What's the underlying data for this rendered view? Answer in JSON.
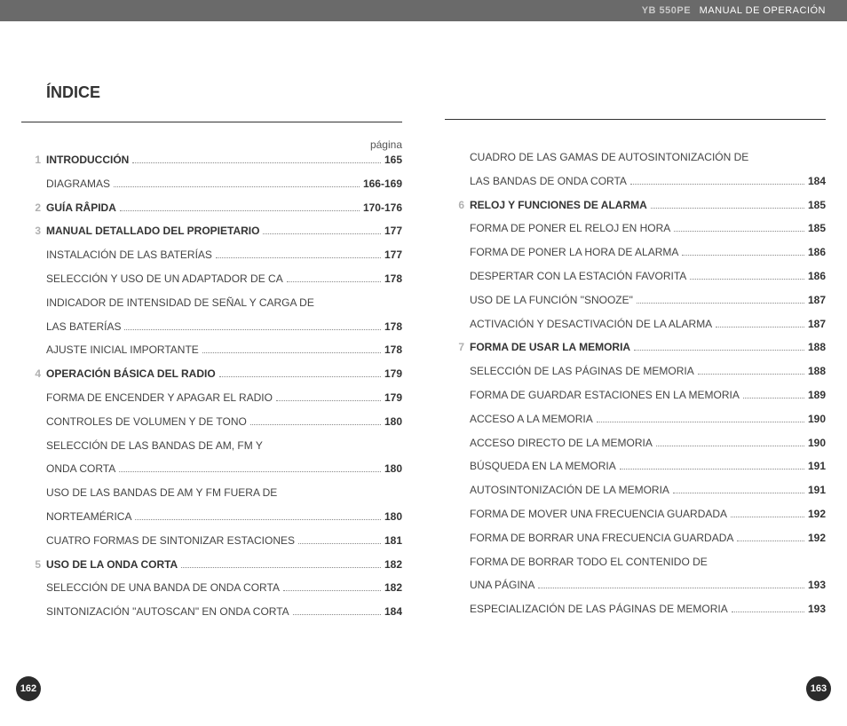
{
  "header": {
    "model": "YB 550PE",
    "doc_title": "MANUAL DE OPERACIÓN"
  },
  "title": "ÍNDICE",
  "pagina_label": "página",
  "page_left": "162",
  "page_right": "163",
  "left_entries": [
    {
      "num": "1",
      "label": "INTRODUCCIÓN",
      "bold": true,
      "page": "165"
    },
    {
      "num": "",
      "label": "DIAGRAMAS",
      "bold": false,
      "page": "166-169"
    },
    {
      "num": "2",
      "label": "GUÍA RÂPIDA",
      "bold": true,
      "page": "170-176"
    },
    {
      "num": "3",
      "label": "MANUAL DETALLADO DEL PROPIETARIO",
      "bold": true,
      "page": "177"
    },
    {
      "num": "",
      "label": "INSTALACIÓN DE LAS BATERÍAS",
      "bold": false,
      "page": "177"
    },
    {
      "num": "",
      "label": "SELECCIÓN Y USO DE UN ADAPTADOR DE CA",
      "bold": false,
      "page": "178"
    },
    {
      "num": "",
      "label": "INDICADOR DE INTENSIDAD DE SEÑAL Y CARGA DE",
      "bold": false,
      "page": "",
      "nolead": true
    },
    {
      "num": "",
      "label": "LAS BATERÍAS",
      "bold": false,
      "page": "178"
    },
    {
      "num": "",
      "label": "AJUSTE INICIAL IMPORTANTE",
      "bold": false,
      "page": "178"
    },
    {
      "num": "4",
      "label": "OPERACIÓN BÁSICA DEL RADIO",
      "bold": true,
      "page": "179"
    },
    {
      "num": "",
      "label": "FORMA DE ENCENDER Y APAGAR EL RADIO",
      "bold": false,
      "page": "179"
    },
    {
      "num": "",
      "label": "CONTROLES DE VOLUMEN Y DE TONO",
      "bold": false,
      "page": "180"
    },
    {
      "num": "",
      "label": "SELECCIÓN DE LAS BANDAS DE AM, FM Y",
      "bold": false,
      "page": "",
      "nolead": true
    },
    {
      "num": "",
      "label": "ONDA CORTA",
      "bold": false,
      "page": "180"
    },
    {
      "num": "",
      "label": "USO DE LAS BANDAS DE AM Y FM FUERA DE",
      "bold": false,
      "page": "",
      "nolead": true
    },
    {
      "num": "",
      "label": "NORTEAMÉRICA",
      "bold": false,
      "page": "180"
    },
    {
      "num": "",
      "label": "CUATRO FORMAS DE SINTONIZAR ESTACIONES",
      "bold": false,
      "page": "181"
    },
    {
      "num": "5",
      "label": "USO DE LA ONDA CORTA",
      "bold": true,
      "page": "182"
    },
    {
      "num": "",
      "label": "SELECCIÓN DE UNA BANDA DE ONDA CORTA",
      "bold": false,
      "page": "182"
    },
    {
      "num": "",
      "label": "SINTONIZACIÓN \"AUTOSCAN\" EN ONDA CORTA",
      "bold": false,
      "page": "184"
    }
  ],
  "right_entries": [
    {
      "num": "",
      "label": "CUADRO DE LAS GAMAS DE AUTOSINTONIZACIÓN DE",
      "bold": false,
      "page": "",
      "nolead": true
    },
    {
      "num": "",
      "label": "LAS BANDAS DE ONDA CORTA",
      "bold": false,
      "page": "184"
    },
    {
      "num": "6",
      "label": "RELOJ Y FUNCIONES DE ALARMA",
      "bold": true,
      "page": "185"
    },
    {
      "num": "",
      "label": "FORMA DE PONER EL RELOJ EN HORA",
      "bold": false,
      "page": "185"
    },
    {
      "num": "",
      "label": "FORMA DE PONER LA HORA DE ALARMA",
      "bold": false,
      "page": "186"
    },
    {
      "num": "",
      "label": "DESPERTAR CON LA ESTACIÓN FAVORITA",
      "bold": false,
      "page": "186"
    },
    {
      "num": "",
      "label": "USO DE LA FUNCIÓN \"SNOOZE\"",
      "bold": false,
      "page": "187"
    },
    {
      "num": "",
      "label": "ACTIVACIÓN Y DESACTIVACIÓN DE LA ALARMA",
      "bold": false,
      "page": "187"
    },
    {
      "num": "7",
      "label": "FORMA DE USAR LA MEMORIA",
      "bold": true,
      "page": "188"
    },
    {
      "num": "",
      "label": "SELECCIÓN DE LAS PÁGINAS DE MEMORIA",
      "bold": false,
      "page": "188"
    },
    {
      "num": "",
      "label": "FORMA DE GUARDAR ESTACIONES EN LA MEMORIA",
      "bold": false,
      "page": "189"
    },
    {
      "num": "",
      "label": "ACCESO A LA MEMORIA",
      "bold": false,
      "page": "190"
    },
    {
      "num": "",
      "label": "ACCESO DIRECTO DE LA MEMORIA",
      "bold": false,
      "page": "190"
    },
    {
      "num": "",
      "label": "BÚSQUEDA EN LA MEMORIA",
      "bold": false,
      "page": "191"
    },
    {
      "num": "",
      "label": "AUTOSINTONIZACIÓN DE LA MEMORIA",
      "bold": false,
      "page": "191"
    },
    {
      "num": "",
      "label": "FORMA DE MOVER UNA FRECUENCIA GUARDADA",
      "bold": false,
      "page": "192"
    },
    {
      "num": "",
      "label": "FORMA DE BORRAR UNA FRECUENCIA GUARDADA",
      "bold": false,
      "page": "192"
    },
    {
      "num": "",
      "label": "FORMA DE BORRAR TODO EL CONTENIDO DE",
      "bold": false,
      "page": "",
      "nolead": true
    },
    {
      "num": "",
      "label": "UNA PÁGINA",
      "bold": false,
      "page": "193"
    },
    {
      "num": "",
      "label": "ESPECIALIZACIÓN DE LAS PÁGINAS DE MEMORIA",
      "bold": false,
      "page": "193"
    }
  ]
}
